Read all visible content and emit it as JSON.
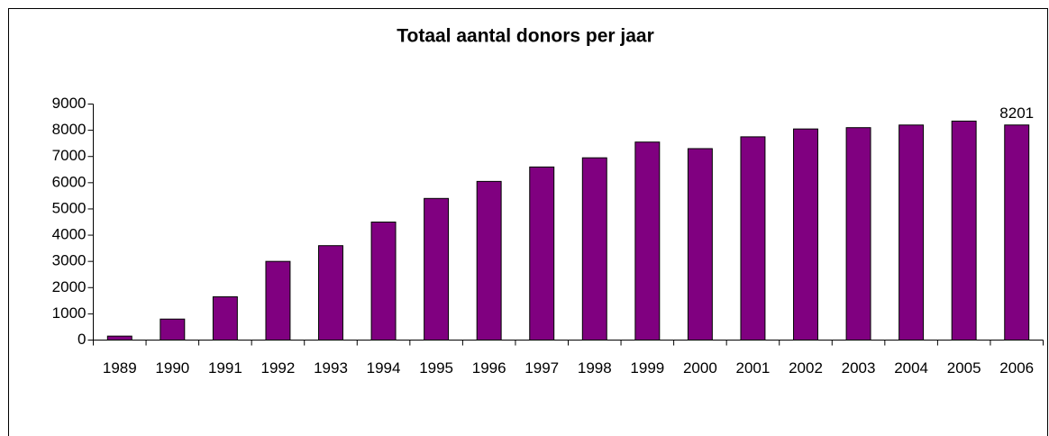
{
  "chart_data": {
    "type": "bar",
    "title": "Totaal aantal donors per jaar",
    "categories": [
      "1989",
      "1990",
      "1991",
      "1992",
      "1993",
      "1994",
      "1995",
      "1996",
      "1997",
      "1998",
      "1999",
      "2000",
      "2001",
      "2002",
      "2003",
      "2004",
      "2005",
      "2006"
    ],
    "values": [
      150,
      800,
      1650,
      3000,
      3600,
      4500,
      5400,
      6050,
      6600,
      6950,
      7550,
      7300,
      7750,
      8050,
      8100,
      8200,
      8350,
      8201
    ],
    "color": "#800080",
    "ylim": [
      0,
      9000
    ],
    "yticks": [
      0,
      1000,
      2000,
      3000,
      4000,
      5000,
      6000,
      7000,
      8000,
      9000
    ],
    "grid": false
  }
}
